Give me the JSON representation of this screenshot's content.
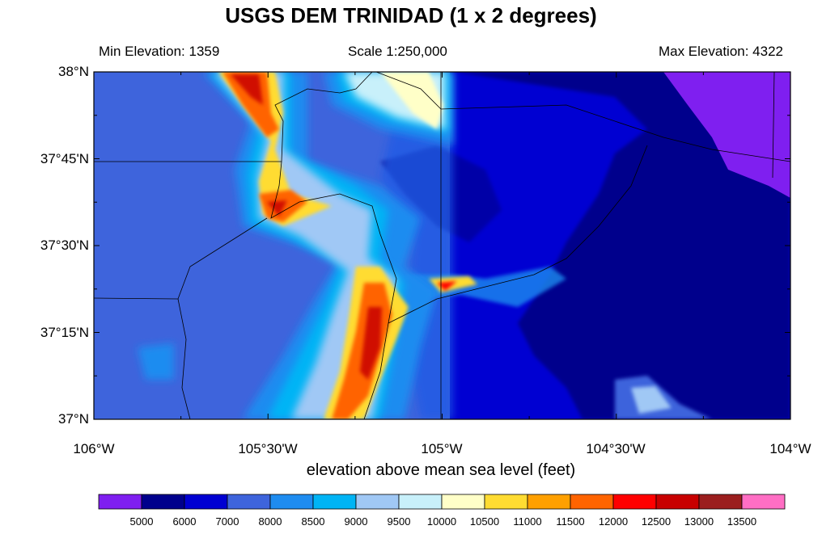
{
  "title": "USGS DEM TRINIDAD (1 x 2 degrees)",
  "header": {
    "min_elevation": "Min Elevation: 1359",
    "scale": "Scale 1:250,000",
    "max_elevation": "Max Elevation: 4322"
  },
  "axes": {
    "lat_labels": [
      "38°N",
      "37°45'N",
      "37°30'N",
      "37°15'N",
      "37°N"
    ],
    "lon_labels": [
      "106°W",
      "105°30'W",
      "105°W",
      "104°30'W",
      "104°W"
    ],
    "x_title": "elevation above mean sea level (feet)"
  },
  "colorbar": {
    "labels": [
      "5000",
      "6000",
      "7000",
      "8000",
      "8500",
      "9000",
      "9500",
      "10000",
      "10500",
      "11000",
      "11500",
      "12000",
      "12500",
      "13000",
      "13500"
    ],
    "colors": [
      "#7f1ff0",
      "#00008c",
      "#0000d2",
      "#3e64dc",
      "#1e8cf0",
      "#00b4f5",
      "#a0c8f5",
      "#c8f0fa",
      "#ffffc8",
      "#ffdc32",
      "#ffa000",
      "#ff6400",
      "#ff0000",
      "#c80000",
      "#9b1e1e",
      "#ff6ec4"
    ]
  }
}
